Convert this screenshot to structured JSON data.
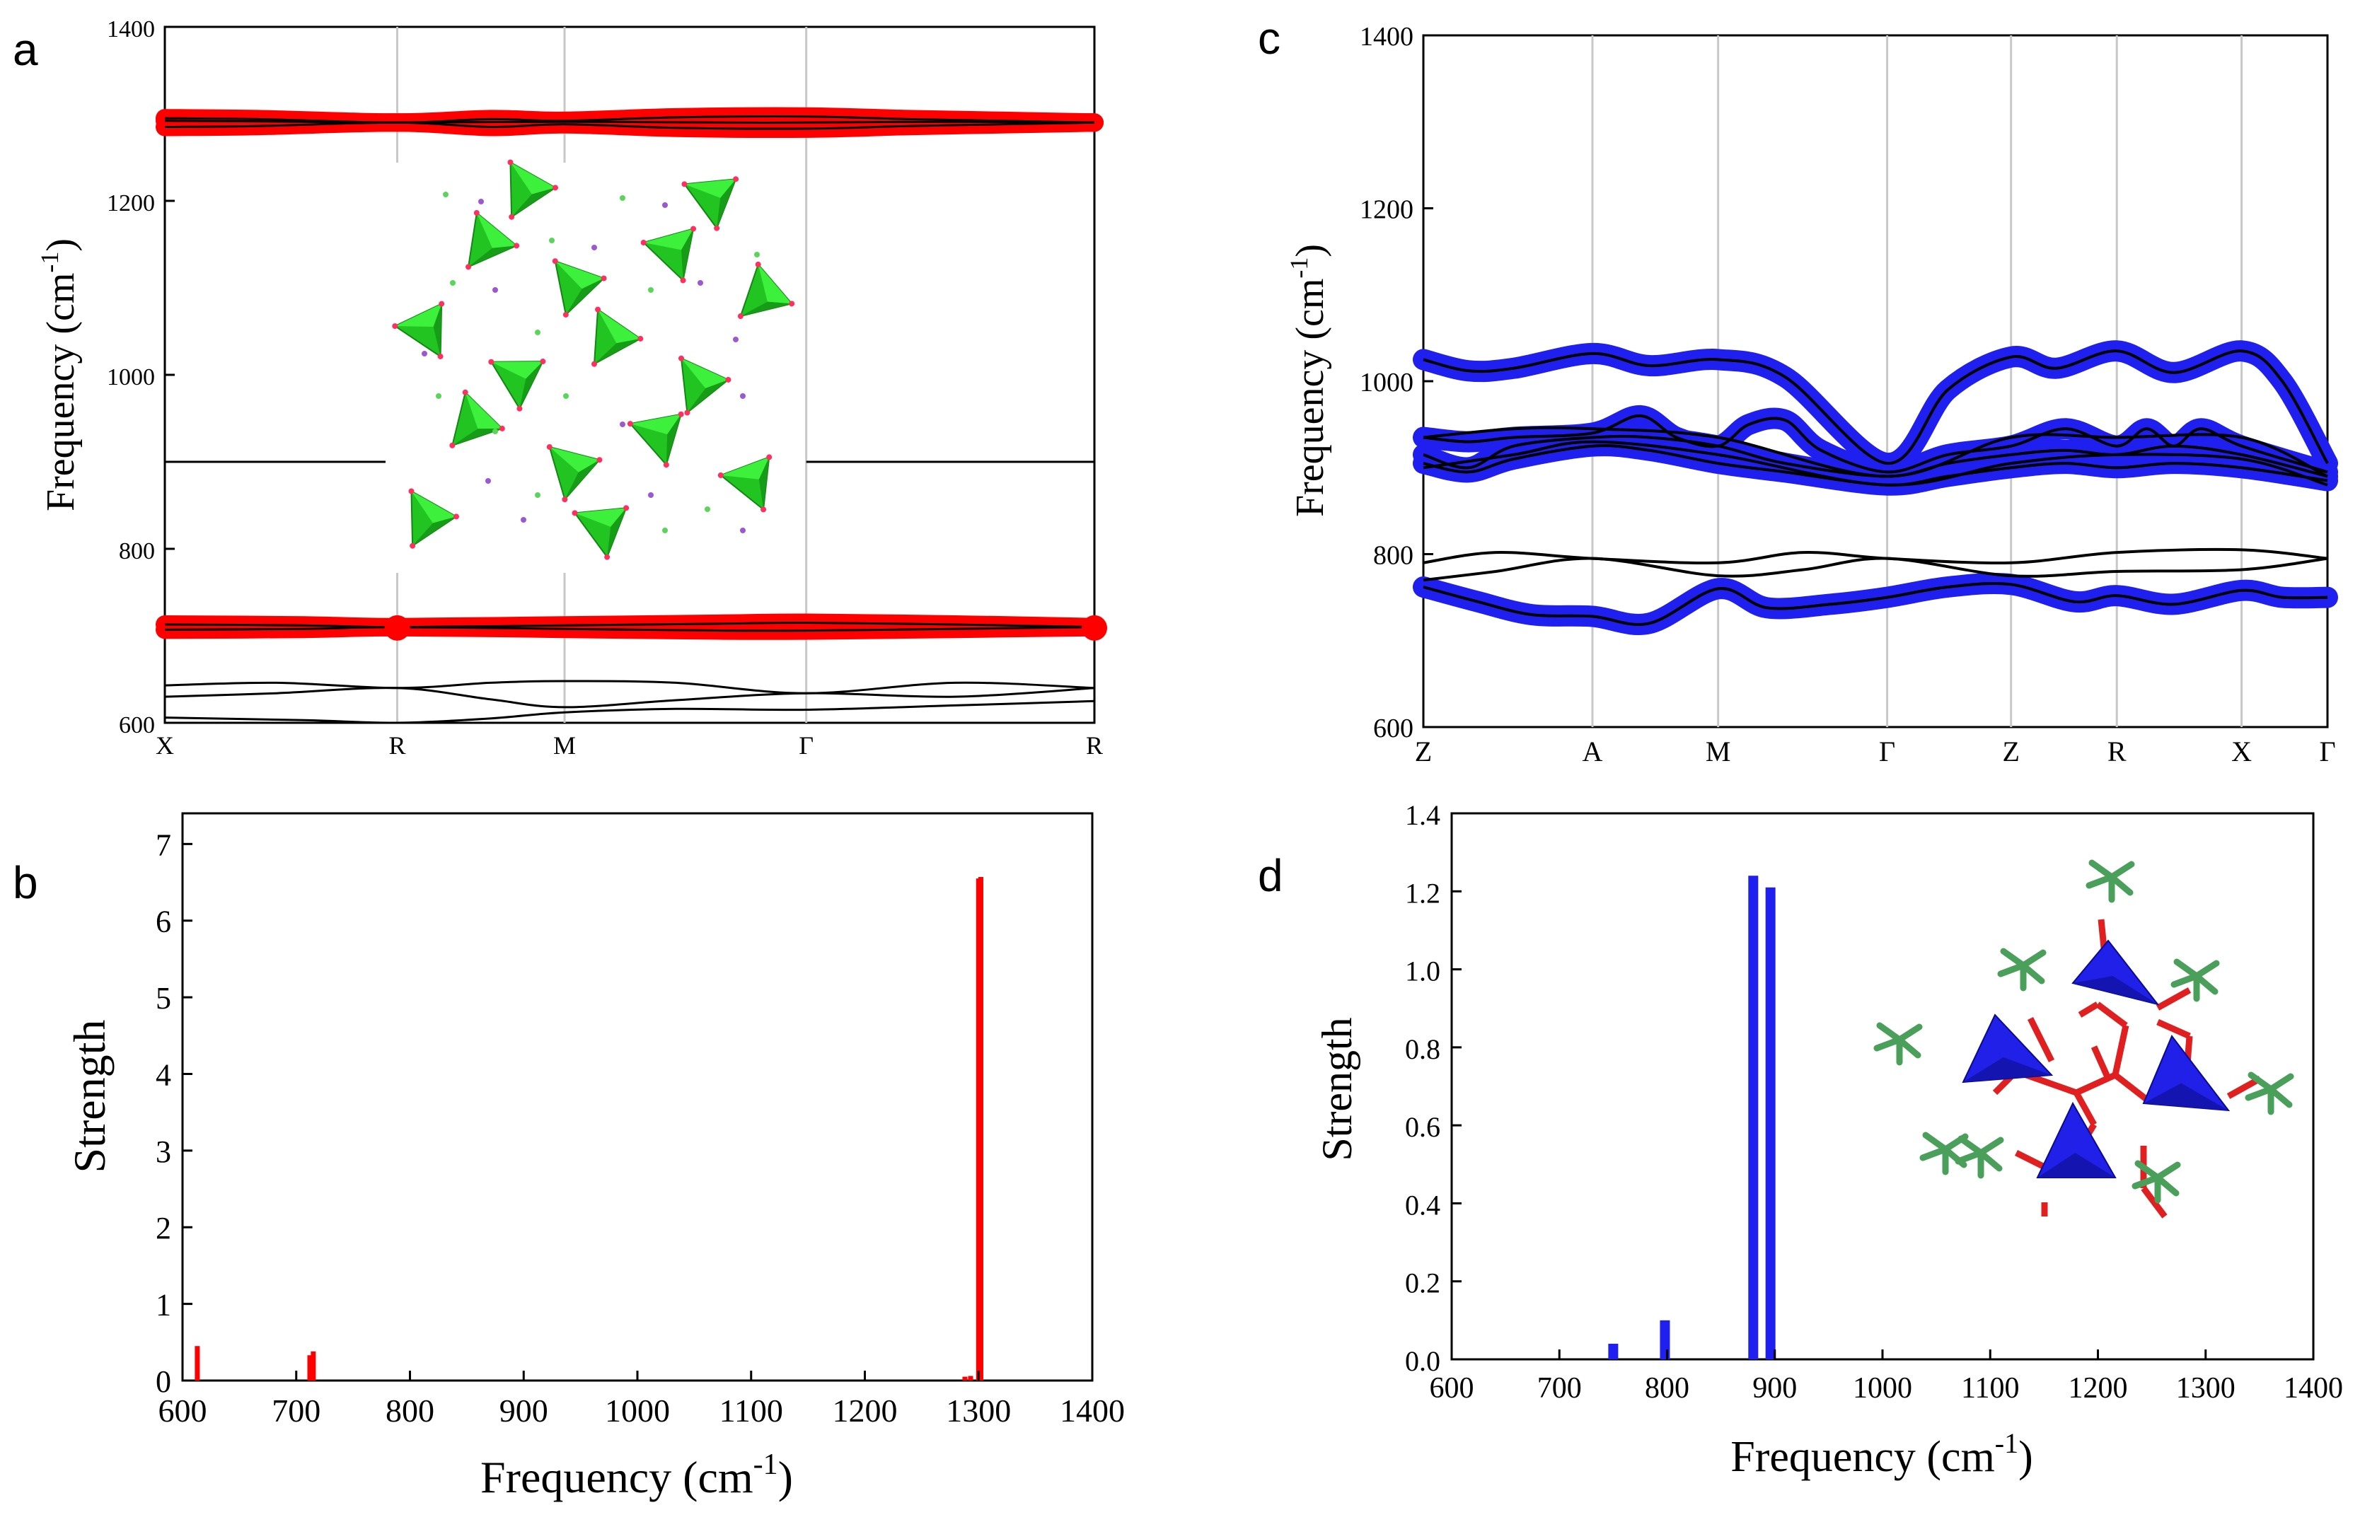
{
  "panels": [
    {
      "id": "a",
      "letter": "a",
      "type": "line",
      "ylabel": "Frequency (cm",
      "ylabel_sup": "-1",
      "ylabel_close": ")",
      "ylim": [
        600,
        1400
      ],
      "yticks": [
        600,
        800,
        1000,
        1200,
        1400
      ],
      "ytick_labels": [
        "600",
        "800",
        "1000",
        "1200",
        "1400"
      ],
      "path_points": [
        "X",
        "R",
        "M",
        "Γ",
        "R"
      ],
      "path_positions": [
        0,
        0.25,
        0.43,
        0.69,
        1.0
      ],
      "highlight_color": "#ff0000",
      "line_color": "#000000",
      "bands": [
        {
          "name": "b1",
          "highlight": true,
          "x": [
            0,
            0.1,
            0.25,
            0.35,
            0.43,
            0.55,
            0.69,
            0.8,
            0.9,
            1.0
          ],
          "y": [
            1295,
            1294,
            1290,
            1294,
            1292,
            1296,
            1297,
            1294,
            1292,
            1290
          ]
        },
        {
          "name": "b2",
          "highlight": true,
          "x": [
            0,
            0.1,
            0.25,
            0.35,
            0.43,
            0.55,
            0.69,
            0.8,
            0.9,
            1.0
          ],
          "y": [
            1285,
            1286,
            1290,
            1285,
            1288,
            1284,
            1283,
            1286,
            1288,
            1290
          ]
        },
        {
          "name": "b3",
          "highlight": true,
          "x": [
            0,
            0.15,
            0.25,
            0.43,
            0.6,
            0.69,
            0.85,
            1.0
          ],
          "y": [
            1292,
            1291,
            1290,
            1291,
            1290,
            1290,
            1291,
            1290
          ]
        },
        {
          "name": "b4",
          "highlight": true,
          "x": [
            0,
            0.15,
            0.25,
            0.43,
            0.6,
            0.69,
            0.85,
            1.0
          ],
          "y": [
            713,
            712,
            710,
            712,
            714,
            715,
            713,
            710
          ]
        },
        {
          "name": "b5",
          "highlight": true,
          "x": [
            0,
            0.15,
            0.25,
            0.43,
            0.6,
            0.69,
            0.85,
            1.0
          ],
          "y": [
            707,
            708,
            710,
            708,
            706,
            706,
            708,
            710
          ]
        },
        {
          "name": "b6",
          "highlight": false,
          "x": [
            0,
            0.24
          ],
          "y": [
            900,
            900
          ]
        },
        {
          "name": "b7",
          "highlight": false,
          "x": [
            0.69,
            1.0
          ],
          "y": [
            900,
            900
          ]
        },
        {
          "name": "b8",
          "highlight": false,
          "x": [
            0,
            0.12,
            0.25,
            0.35,
            0.43,
            0.55,
            0.69,
            0.85,
            1.0
          ],
          "y": [
            643,
            646,
            640,
            646,
            648,
            646,
            634,
            646,
            640
          ]
        },
        {
          "name": "b9",
          "highlight": false,
          "x": [
            0,
            0.12,
            0.25,
            0.35,
            0.43,
            0.55,
            0.69,
            0.85,
            1.0
          ],
          "y": [
            630,
            634,
            640,
            627,
            618,
            626,
            634,
            630,
            640
          ]
        },
        {
          "name": "b10",
          "highlight": false,
          "x": [
            0,
            0.15,
            0.25,
            0.35,
            0.43,
            0.55,
            0.69,
            0.85,
            1.0
          ],
          "y": [
            606,
            603,
            600,
            605,
            612,
            616,
            615,
            620,
            625
          ]
        }
      ],
      "markers": [
        {
          "x": 0.25,
          "y": 709
        },
        {
          "x": 1.0,
          "y": 709
        }
      ]
    },
    {
      "id": "b",
      "letter": "b",
      "type": "bar",
      "xlabel": "Frequency (cm",
      "xlabel_sup": "-1",
      "xlabel_close": ")",
      "ylabel": "Strength",
      "xlim": [
        600,
        1400
      ],
      "ylim": [
        0,
        7.4
      ],
      "xticks": [
        600,
        700,
        800,
        900,
        1000,
        1100,
        1200,
        1300,
        1400
      ],
      "xtick_labels": [
        "600",
        "700",
        "800",
        "900",
        "1000",
        "1100",
        "1200",
        "1300",
        "1400"
      ],
      "yticks": [
        0,
        1,
        2,
        3,
        4,
        5,
        6,
        7
      ],
      "ytick_labels": [
        "0",
        "1",
        "2",
        "3",
        "4",
        "5",
        "6",
        "7"
      ],
      "bar_color": "#ff0000",
      "bars": [
        {
          "x": 613,
          "value": 0.45
        },
        {
          "x": 712,
          "value": 0.33
        },
        {
          "x": 715,
          "value": 0.38
        },
        {
          "x": 1288,
          "value": 0.05
        },
        {
          "x": 1293,
          "value": 0.06
        },
        {
          "x": 1300,
          "value": 6.55
        },
        {
          "x": 1302,
          "value": 6.57
        }
      ]
    },
    {
      "id": "c",
      "letter": "c",
      "type": "line",
      "ylabel": "Frequency (cm",
      "ylabel_sup": "-1",
      "ylabel_close": ")",
      "ylim": [
        600,
        1400
      ],
      "yticks": [
        600,
        800,
        1000,
        1200,
        1400
      ],
      "ytick_labels": [
        "600",
        "800",
        "1000",
        "1200",
        "1400"
      ],
      "path_points": [
        "Z",
        "A",
        "M",
        "Γ",
        "Z",
        "R",
        "X",
        "Γ"
      ],
      "path_positions": [
        0,
        0.187,
        0.326,
        0.513,
        0.65,
        0.767,
        0.905,
        1.0
      ],
      "highlight_color": "#1f1ff0",
      "line_color": "#000000",
      "bands": [
        {
          "name": "c1",
          "highlight": true,
          "x": [
            0,
            0.05,
            0.1,
            0.187,
            0.25,
            0.326,
            0.4,
            0.513,
            0.58,
            0.65,
            0.7,
            0.767,
            0.83,
            0.905,
            0.95,
            1.0
          ],
          "y": [
            1025,
            1012,
            1015,
            1032,
            1018,
            1025,
            1005,
            905,
            990,
            1028,
            1015,
            1035,
            1010,
            1035,
            1000,
            905
          ]
        },
        {
          "name": "c2",
          "highlight": true,
          "x": [
            0,
            0.05,
            0.1,
            0.187,
            0.24,
            0.28,
            0.326,
            0.36,
            0.4,
            0.44,
            0.513,
            0.58,
            0.65,
            0.71,
            0.767,
            0.8,
            0.83,
            0.86,
            0.905,
            1.0
          ],
          "y": [
            935,
            930,
            935,
            940,
            960,
            935,
            925,
            950,
            955,
            920,
            895,
            915,
            925,
            945,
            925,
            945,
            925,
            945,
            925,
            895
          ]
        },
        {
          "name": "c3",
          "highlight": true,
          "x": [
            0,
            0.05,
            0.1,
            0.187,
            0.25,
            0.326,
            0.4,
            0.513,
            0.58,
            0.65,
            0.71,
            0.767,
            0.83,
            0.905,
            1.0
          ],
          "y": [
            915,
            900,
            925,
            935,
            935,
            925,
            905,
            890,
            905,
            915,
            920,
            915,
            925,
            915,
            890
          ]
        },
        {
          "name": "c4",
          "highlight": true,
          "x": [
            0,
            0.05,
            0.1,
            0.187,
            0.25,
            0.326,
            0.4,
            0.513,
            0.58,
            0.65,
            0.71,
            0.767,
            0.83,
            0.905,
            1.0
          ],
          "y": [
            905,
            895,
            910,
            925,
            920,
            905,
            895,
            880,
            890,
            900,
            905,
            900,
            905,
            900,
            885
          ]
        },
        {
          "name": "c5",
          "highlight": false,
          "x": [
            0,
            0.1,
            0.187,
            0.326,
            0.513,
            0.65,
            0.767,
            0.905,
            1.0
          ],
          "y": [
            935,
            945,
            945,
            935,
            890,
            935,
            935,
            935,
            890
          ]
        },
        {
          "name": "c6",
          "highlight": false,
          "x": [
            0,
            0.1,
            0.187,
            0.326,
            0.513,
            0.65,
            0.767,
            0.905,
            1.0
          ],
          "y": [
            900,
            915,
            930,
            915,
            880,
            905,
            915,
            910,
            880
          ]
        },
        {
          "name": "c7",
          "highlight": false,
          "x": [
            0,
            0.08,
            0.187,
            0.326,
            0.42,
            0.513,
            0.65,
            0.767,
            0.905,
            1.0
          ],
          "y": [
            790,
            802,
            795,
            790,
            802,
            795,
            790,
            802,
            805,
            795
          ]
        },
        {
          "name": "c8",
          "highlight": false,
          "x": [
            0,
            0.08,
            0.187,
            0.326,
            0.42,
            0.513,
            0.65,
            0.767,
            0.905,
            1.0
          ],
          "y": [
            770,
            780,
            795,
            775,
            782,
            795,
            775,
            780,
            782,
            795
          ]
        },
        {
          "name": "c9",
          "highlight": true,
          "x": [
            0,
            0.06,
            0.12,
            0.187,
            0.25,
            0.326,
            0.38,
            0.45,
            0.513,
            0.58,
            0.65,
            0.72,
            0.767,
            0.83,
            0.905,
            0.95,
            1.0
          ],
          "y": [
            762,
            745,
            730,
            728,
            720,
            760,
            738,
            742,
            750,
            762,
            765,
            745,
            752,
            742,
            758,
            750,
            750
          ]
        }
      ],
      "markers": []
    },
    {
      "id": "d",
      "letter": "d",
      "type": "bar",
      "xlabel": "Frequency (cm",
      "xlabel_sup": "-1",
      "xlabel_close": ")",
      "ylabel": "Strength",
      "xlim": [
        600,
        1400
      ],
      "ylim": [
        0,
        1.4
      ],
      "xticks": [
        600,
        700,
        800,
        900,
        1000,
        1100,
        1200,
        1300,
        1400
      ],
      "xtick_labels": [
        "600",
        "700",
        "800",
        "900",
        "1000",
        "1100",
        "1200",
        "1300",
        "1400"
      ],
      "yticks": [
        0.0,
        0.2,
        0.4,
        0.6,
        0.8,
        1.0,
        1.2,
        1.4
      ],
      "ytick_labels": [
        "0.0",
        "0.2",
        "0.4",
        "0.6",
        "0.8",
        "1.0",
        "1.2",
        "1.4"
      ],
      "bar_color": "#1f1ff0",
      "bars": [
        {
          "x": 750,
          "value": 0.04
        },
        {
          "x": 798,
          "value": 0.1
        },
        {
          "x": 880,
          "value": 1.24
        },
        {
          "x": 896,
          "value": 1.21
        }
      ]
    }
  ],
  "chart_data": [
    {
      "type": "line",
      "panel": "a",
      "title": "",
      "xlabel": "",
      "ylabel": "Frequency (cm-1)",
      "ylim": [
        600,
        1400
      ],
      "x_tick_labels": [
        "X",
        "R",
        "M",
        "Γ",
        "R"
      ],
      "series_summary": [
        {
          "name": "high-frequency bands (highlighted)",
          "approx_range": [
            1283,
            1297
          ]
        },
        {
          "name": "mid bands (highlighted)",
          "approx_range": [
            706,
            715
          ]
        },
        {
          "name": "flat band",
          "value": 900
        },
        {
          "name": "low bands",
          "approx_range": [
            600,
            648
          ]
        }
      ]
    },
    {
      "type": "bar",
      "panel": "b",
      "xlabel": "Frequency (cm-1)",
      "ylabel": "Strength",
      "xlim": [
        600,
        1400
      ],
      "ylim": [
        0,
        7.4
      ],
      "x": [
        613,
        712,
        715,
        1288,
        1293,
        1300,
        1302
      ],
      "values": [
        0.45,
        0.33,
        0.38,
        0.05,
        0.06,
        6.55,
        6.57
      ]
    },
    {
      "type": "line",
      "panel": "c",
      "title": "",
      "xlabel": "",
      "ylabel": "Frequency (cm-1)",
      "ylim": [
        600,
        1400
      ],
      "x_tick_labels": [
        "Z",
        "A",
        "M",
        "Γ",
        "Z",
        "R",
        "X",
        "Γ"
      ],
      "series_summary": [
        {
          "name": "upper highlighted band",
          "approx_range": [
            905,
            1035
          ]
        },
        {
          "name": "middle highlighted bands",
          "approx_range": [
            880,
            960
          ]
        },
        {
          "name": "plain bands",
          "approx_range": [
            770,
            805
          ]
        },
        {
          "name": "lower highlighted band",
          "approx_range": [
            720,
            765
          ]
        }
      ]
    },
    {
      "type": "bar",
      "panel": "d",
      "xlabel": "Frequency (cm-1)",
      "ylabel": "Strength",
      "xlim": [
        600,
        1400
      ],
      "ylim": [
        0,
        1.4
      ],
      "x": [
        750,
        798,
        880,
        896
      ],
      "values": [
        0.04,
        0.1,
        1.24,
        1.21
      ]
    }
  ]
}
